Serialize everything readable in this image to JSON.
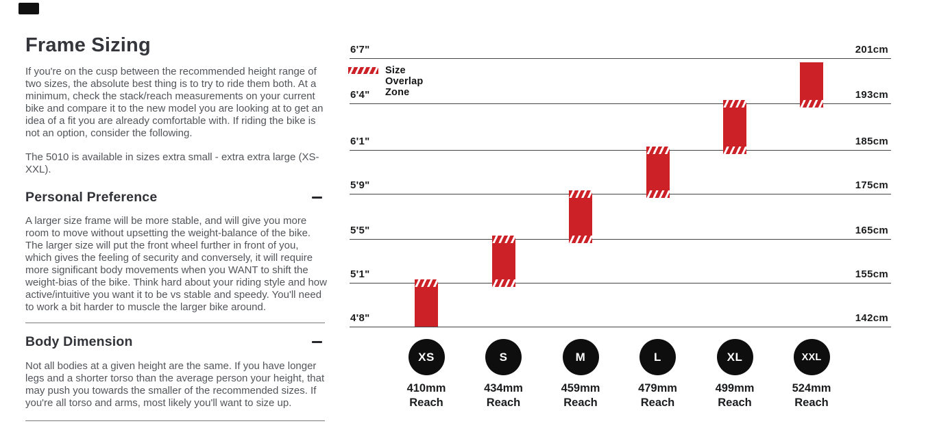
{
  "left_panel": {
    "title": "Frame Sizing",
    "intro": "If you're on the cusp between the recommended height range of two sizes, the absolute best thing is to try to ride them both. At a minimum, check the stack/reach measurements on your current bike and compare it to the new model you are looking at to get an idea of a fit you are already comfortable with. If riding the bike is not an option, consider the following.",
    "availability": "The 5010 is available in sizes extra small - extra extra large (XS-XXL).",
    "sections": [
      {
        "title": "Personal Preference",
        "collapse_icon": "minus",
        "body": "A larger size frame will be more stable, and will give you more room to move without upsetting the weight-balance of the bike. The larger size will put the front wheel further in front of you, which gives the feeling of security and conversely, it will require more significant body movements when you WANT to shift the weight-bias of the bike. Think hard about your riding style and how active/intuitive you want it to be vs stable and speedy. You'll need to work a bit harder to muscle the larger bike around."
      },
      {
        "title": "Body Dimension",
        "collapse_icon": "minus",
        "body": "Not all bodies at a given height are the same. If you have longer legs and a shorter torso than the average person your height, that may push you towards the smaller of the recommended sizes. If you're all torso and arms, most likely you'll want to size up."
      }
    ]
  },
  "chart_data": {
    "type": "bar",
    "subtype": "vertical-range-bars-with-overlap-zones",
    "title": "",
    "legend": [
      {
        "label": "Size Overlap Zone",
        "swatch": "red-diagonal-hatch"
      }
    ],
    "grid": "horizontal gridlines, one per height tick",
    "y_axis_left_labels": [
      "6'7\"",
      "6'4\"",
      "6'1\"",
      "5'9\"",
      "5'5\"",
      "5'1\"",
      "4'8\""
    ],
    "y_axis_right_labels": [
      "201cm",
      "193cm",
      "185cm",
      "175cm",
      "165cm",
      "155cm",
      "142cm"
    ],
    "series": [
      {
        "size": "XS",
        "reach": "410mm",
        "reach_caption": "Reach",
        "height_min": "4'8\"",
        "height_max": "5'1\"",
        "height_min_cm": "142cm",
        "height_max_cm": "155cm",
        "overlap_top": true,
        "overlap_bottom": false
      },
      {
        "size": "S",
        "reach": "434mm",
        "reach_caption": "Reach",
        "height_min": "5'1\"",
        "height_max": "5'5\"",
        "height_min_cm": "155cm",
        "height_max_cm": "165cm",
        "overlap_top": true,
        "overlap_bottom": true
      },
      {
        "size": "M",
        "reach": "459mm",
        "reach_caption": "Reach",
        "height_min": "5'5\"",
        "height_max": "5'9\"",
        "height_min_cm": "165cm",
        "height_max_cm": "175cm",
        "overlap_top": true,
        "overlap_bottom": true
      },
      {
        "size": "L",
        "reach": "479mm",
        "reach_caption": "Reach",
        "height_min": "5'9\"",
        "height_max": "6'1\"",
        "height_min_cm": "175cm",
        "height_max_cm": "185cm",
        "overlap_top": true,
        "overlap_bottom": true
      },
      {
        "size": "XL",
        "reach": "499mm",
        "reach_caption": "Reach",
        "height_min": "6'1\"",
        "height_max": "6'4\"",
        "height_min_cm": "185cm",
        "height_max_cm": "193cm",
        "overlap_top": true,
        "overlap_bottom": true
      },
      {
        "size": "XXL",
        "reach": "524mm",
        "reach_caption": "Reach",
        "height_min": "6'4\"",
        "height_max": "6'7\"",
        "height_min_cm": "193cm",
        "height_max_cm": "201cm",
        "overlap_top": false,
        "overlap_bottom": true
      }
    ],
    "colors": {
      "bar": "#cc2127",
      "circle": "#0e0e0e",
      "gridline": "#404245"
    }
  }
}
